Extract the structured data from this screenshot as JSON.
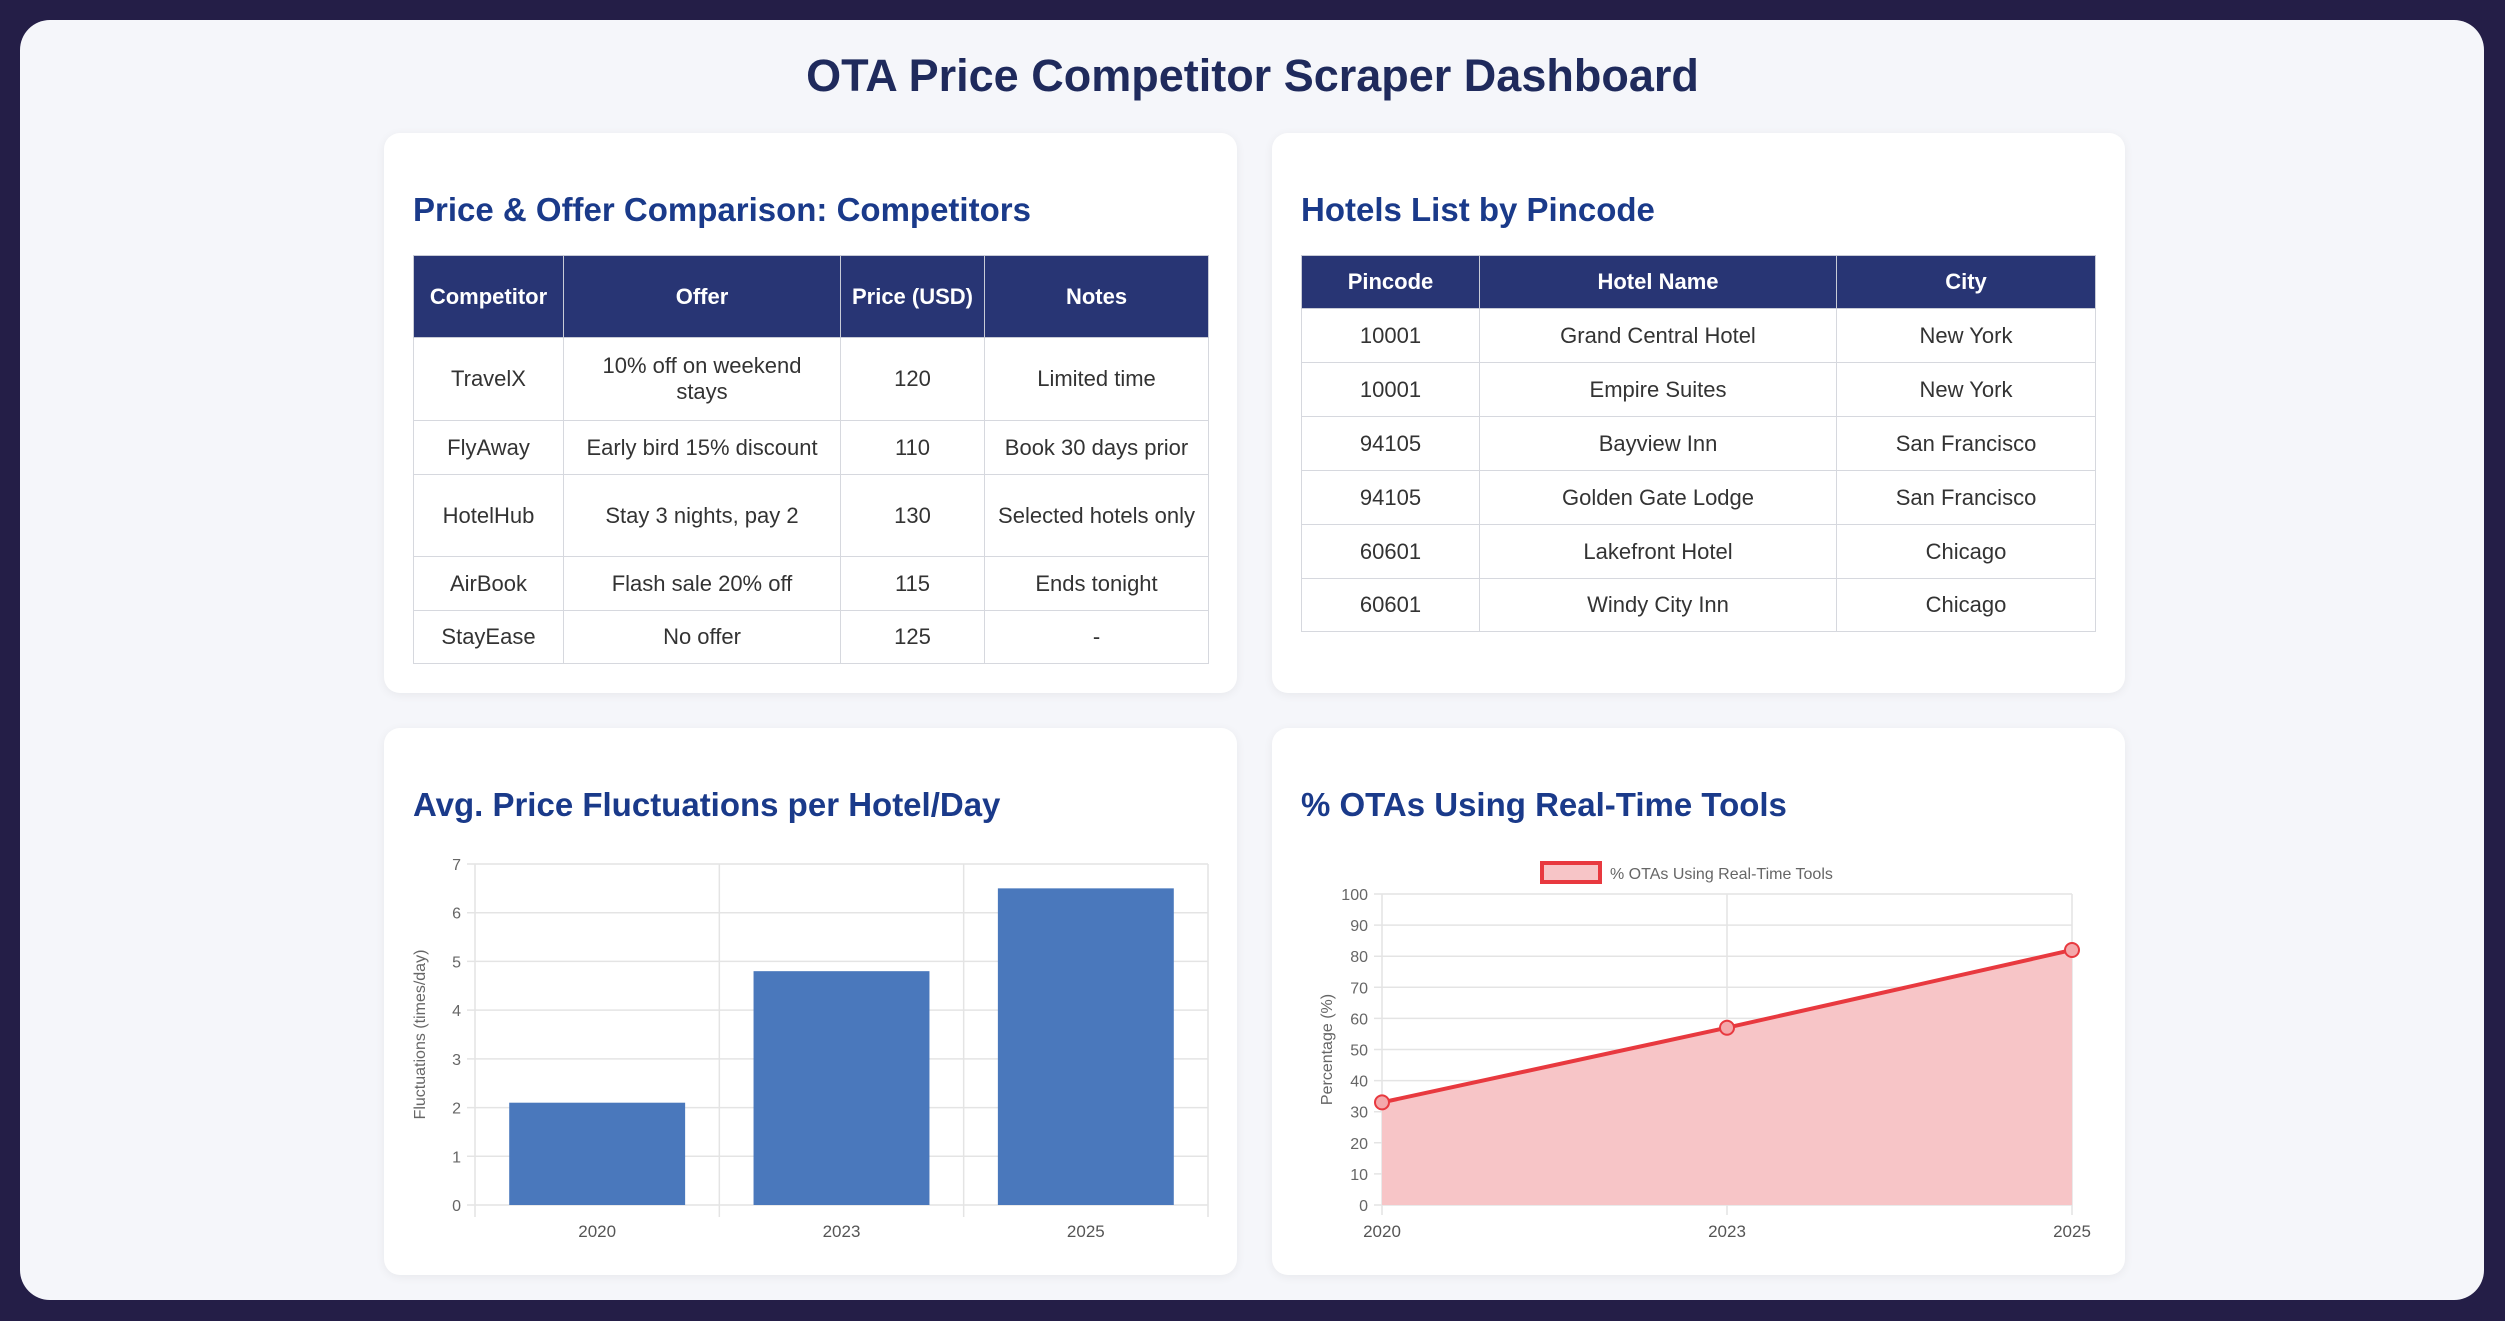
{
  "title": "OTA Price Competitor Scraper Dashboard",
  "competitors": {
    "heading": "Price & Offer Comparison: Competitors",
    "columns": [
      "Competitor",
      "Offer",
      "Price (USD)",
      "Notes"
    ],
    "rows": [
      [
        "TravelX",
        "10% off on weekend stays",
        "120",
        "Limited time"
      ],
      [
        "FlyAway",
        "Early bird 15% discount",
        "110",
        "Book 30 days prior"
      ],
      [
        "HotelHub",
        "Stay 3 nights, pay 2",
        "130",
        "Selected hotels only"
      ],
      [
        "AirBook",
        "Flash sale 20% off",
        "115",
        "Ends tonight"
      ],
      [
        "StayEase",
        "No offer",
        "125",
        "-"
      ]
    ]
  },
  "hotels": {
    "heading": "Hotels List by Pincode",
    "columns": [
      "Pincode",
      "Hotel Name",
      "City"
    ],
    "rows": [
      [
        "10001",
        "Grand Central Hotel",
        "New York"
      ],
      [
        "10001",
        "Empire Suites",
        "New York"
      ],
      [
        "94105",
        "Bayview Inn",
        "San Francisco"
      ],
      [
        "94105",
        "Golden Gate Lodge",
        "San Francisco"
      ],
      [
        "60601",
        "Lakefront Hotel",
        "Chicago"
      ],
      [
        "60601",
        "Windy City Inn",
        "Chicago"
      ]
    ]
  },
  "chart_data": [
    {
      "type": "bar",
      "title": "Avg. Price Fluctuations per Hotel/Day",
      "categories": [
        "2020",
        "2023",
        "2025"
      ],
      "values": [
        2.1,
        4.8,
        6.5
      ],
      "ylabel": "Fluctuations (times/day)",
      "ylim": [
        0,
        7
      ],
      "yticks": [
        "0",
        "1",
        "2",
        "3",
        "4",
        "5",
        "6",
        "7"
      ],
      "grid": true,
      "color": "#4a78bc"
    },
    {
      "type": "area",
      "title": "% OTAs Using Real-Time Tools",
      "categories": [
        "2020",
        "2023",
        "2025"
      ],
      "series": [
        {
          "name": "% OTAs Using Real-Time Tools",
          "values": [
            33,
            57,
            82
          ]
        }
      ],
      "ylabel": "Percentage (%)",
      "ylim": [
        0,
        100
      ],
      "yticks": [
        "0",
        "10",
        "20",
        "30",
        "40",
        "50",
        "60",
        "70",
        "80",
        "90",
        "100"
      ],
      "grid": true,
      "legend": "top",
      "color": "#e8393f",
      "fill": "#f7c5c7"
    }
  ]
}
